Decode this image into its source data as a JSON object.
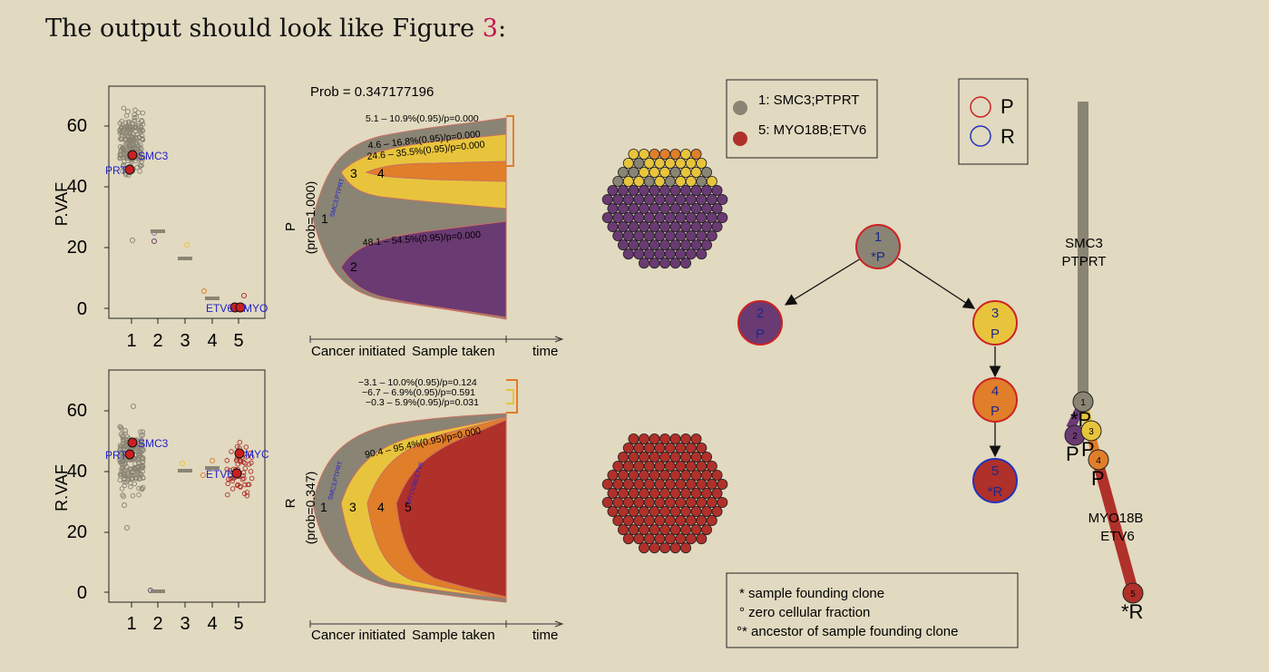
{
  "caption": {
    "prefix": "The output should look like Figure ",
    "ref": "3",
    "suffix": ":"
  },
  "colors": {
    "grey": "#8a8474",
    "purple": "#6a3a72",
    "yellow": "#e8c43c",
    "orange": "#e07e2a",
    "red": "#b0302a",
    "blue": "#2222cc",
    "legend_P": "#cc2222",
    "legend_R": "#2233bb"
  },
  "vaf_top": {
    "ylabel": "P.VAF",
    "yticks": [
      "60",
      "40",
      "20",
      "0"
    ],
    "xticks": [
      "1",
      "2",
      "3",
      "4",
      "5"
    ],
    "labels": [
      "SMC3",
      "PTPRT",
      "ETV6",
      "MYO18B"
    ]
  },
  "vaf_bottom": {
    "ylabel": "R.VAF",
    "yticks": [
      "60",
      "40",
      "20",
      "0"
    ],
    "xticks": [
      "1",
      "2",
      "3",
      "4",
      "5"
    ],
    "labels": [
      "SMC3",
      "PTPRT",
      "ETV6",
      "MYO18B"
    ]
  },
  "fish_top": {
    "prob": "Prob = 0.347177196",
    "sample": "P",
    "sample_prob": "(prob=1.000)",
    "ann": [
      "5.1 – 10.9%(0.95)/p=0.000",
      "4.6 – 16.8%(0.95)/p=0.000",
      "24.6 – 35.5%(0.95)/p=0.000",
      "48.1 – 54.5%(0.95)/p=0.000"
    ],
    "clone_labels": [
      "1",
      "2",
      "3",
      "4"
    ],
    "vert_label": "SMC3;PTPRT",
    "axis": {
      "start": "Cancer initiated",
      "mid": "Sample taken",
      "end": "time"
    }
  },
  "fish_bottom": {
    "sample": "R",
    "sample_prob": "(prob=0.347)",
    "ann": [
      "−3.1 – 10.0%(0.95)/p=0.124",
      "−6.7 – 6.9%(0.95)/p=0.591",
      "−0.3 – 5.9%(0.95)/p=0.031",
      "90.4 – 95.4%(0.95)/p=0.000"
    ],
    "clone_labels": [
      "1",
      "3",
      "4",
      "5"
    ],
    "vert_labels": [
      "SMC3;PTPRT",
      "MYO18B;ETV6"
    ],
    "axis": {
      "start": "Cancer initiated",
      "mid": "Sample taken",
      "end": "time"
    }
  },
  "clone_legend": [
    {
      "label": "1: SMC3;PTPRT",
      "color": "#8a8474"
    },
    {
      "label": "5: MYO18B;ETV6",
      "color": "#b0302a"
    }
  ],
  "sample_legend": [
    {
      "label": "P",
      "color": "#cc2222"
    },
    {
      "label": "R",
      "color": "#2233bb"
    }
  ],
  "tree": {
    "nodes": [
      {
        "num": "1",
        "tag": "*P",
        "fill": "#8a8474",
        "ring": "#cc2222"
      },
      {
        "num": "2",
        "tag": "P",
        "fill": "#6a3a72",
        "ring": "#cc2222"
      },
      {
        "num": "3",
        "tag": "P",
        "fill": "#e8c43c",
        "ring": "#cc2222"
      },
      {
        "num": "4",
        "tag": "P",
        "fill": "#e07e2a",
        "ring": "#cc2222"
      },
      {
        "num": "5",
        "tag": "*R",
        "fill": "#b0302a",
        "ring": "#2233bb"
      }
    ]
  },
  "branch": {
    "label_top": [
      "SMC3",
      "PTPRT"
    ],
    "label_bottom": [
      "MYO18B",
      "ETV6"
    ],
    "nodes": [
      "1",
      "2",
      "3",
      "4",
      "5"
    ],
    "tags": [
      "*P",
      "P",
      "P",
      "P",
      "*R"
    ]
  },
  "footnote": [
    "*  sample founding clone",
    "°  zero cellular fraction",
    "°*  ancestor of sample founding clone"
  ]
}
